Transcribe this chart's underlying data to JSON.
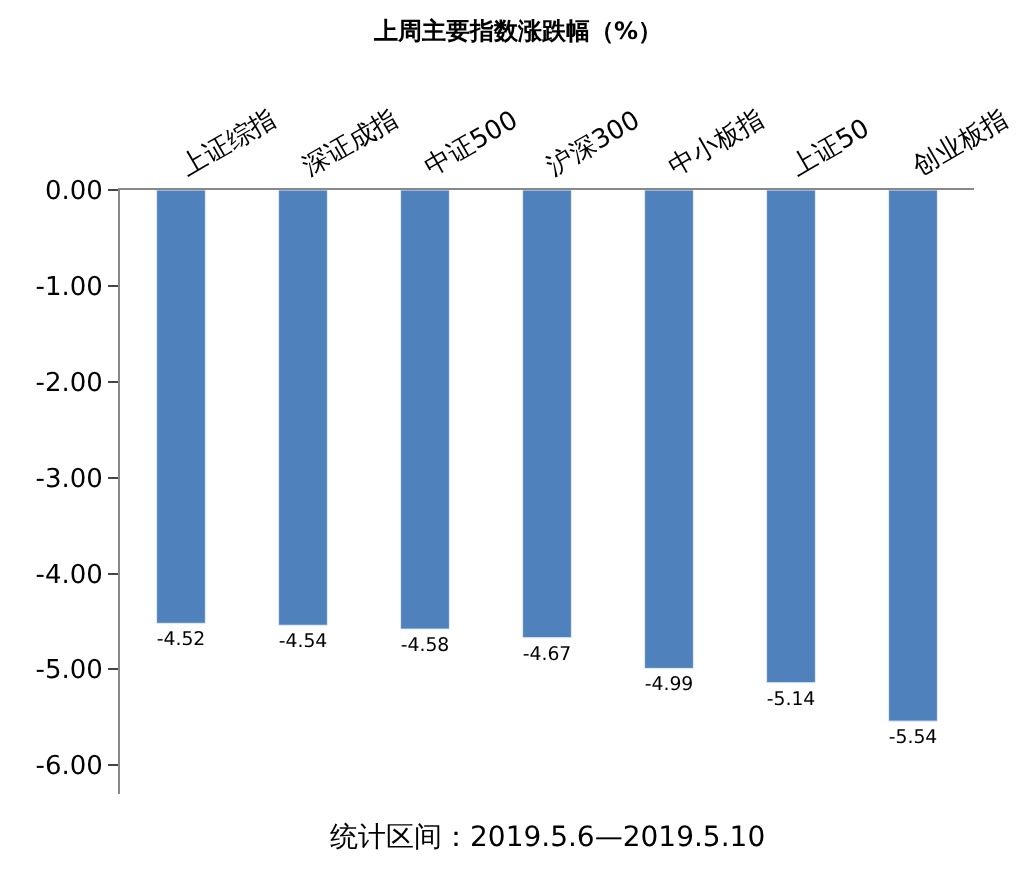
{
  "chart_data": {
    "type": "bar",
    "title": "上周主要指数涨跌幅（%）",
    "categories": [
      "上证综指",
      "深证成指",
      "中证500",
      "沪深300",
      "中小板指",
      "上证50",
      "创业板指"
    ],
    "values": [
      -4.52,
      -4.54,
      -4.58,
      -4.67,
      -4.99,
      -5.14,
      -5.54
    ],
    "color": "#4f81bd",
    "data_labels": true,
    "ylim": [
      -6.3,
      0
    ],
    "yticks": [
      {
        "value": 0,
        "label": "0.00"
      },
      {
        "value": -1,
        "label": "-1.00"
      },
      {
        "value": -2,
        "label": "-2.00"
      },
      {
        "value": -3,
        "label": "-3.00"
      },
      {
        "value": -4,
        "label": "-4.00"
      },
      {
        "value": -5,
        "label": "-5.00"
      },
      {
        "value": -6,
        "label": "-6.00"
      }
    ],
    "annotations": [
      "统计区间：2019.5.6—2019.5.10"
    ]
  }
}
